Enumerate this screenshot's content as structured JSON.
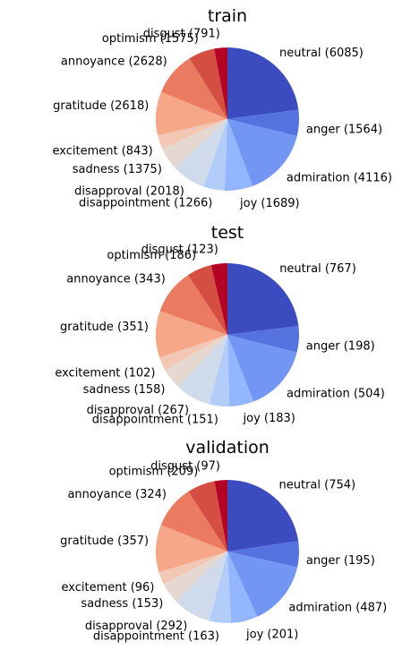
{
  "chart_data": [
    {
      "type": "pie",
      "title": "train",
      "start_angle_deg": 90,
      "direction": "clockwise",
      "slices": [
        {
          "label": "neutral (6085)",
          "category": "neutral",
          "value": 6085,
          "color": "#3b4cc0"
        },
        {
          "label": "anger (1564)",
          "category": "anger",
          "value": 1564,
          "color": "#5572df"
        },
        {
          "label": "admiration (4116)",
          "category": "admiration",
          "value": 4116,
          "color": "#7396f5"
        },
        {
          "label": "joy (1689)",
          "category": "joy",
          "value": 1689,
          "color": "#94b6ff"
        },
        {
          "label": "disappointment (1266)",
          "category": "disappointment",
          "value": 1266,
          "color": "#b3cdfb"
        },
        {
          "label": "disapproval (2018)",
          "category": "disapproval",
          "value": 2018,
          "color": "#cfdaea"
        },
        {
          "label": "sadness (1375)",
          "category": "sadness",
          "value": 1375,
          "color": "#e5d8d1"
        },
        {
          "label": "excitement (843)",
          "category": "excitement",
          "value": 843,
          "color": "#f2c8b4"
        },
        {
          "label": "gratitude (2618)",
          "category": "gratitude",
          "value": 2618,
          "color": "#f6a788"
        },
        {
          "label": "annoyance (2628)",
          "category": "annoyance",
          "value": 2628,
          "color": "#ea7b60"
        },
        {
          "label": "optimism (1575)",
          "category": "optimism",
          "value": 1575,
          "color": "#d44e41"
        },
        {
          "label": "disgust (791)",
          "category": "disgust",
          "value": 791,
          "color": "#b40426"
        }
      ]
    },
    {
      "type": "pie",
      "title": "test",
      "start_angle_deg": 90,
      "direction": "clockwise",
      "slices": [
        {
          "label": "neutral (767)",
          "category": "neutral",
          "value": 767,
          "color": "#3b4cc0"
        },
        {
          "label": "anger (198)",
          "category": "anger",
          "value": 198,
          "color": "#5572df"
        },
        {
          "label": "admiration (504)",
          "category": "admiration",
          "value": 504,
          "color": "#7396f5"
        },
        {
          "label": "joy (183)",
          "category": "joy",
          "value": 183,
          "color": "#94b6ff"
        },
        {
          "label": "disappointment (151)",
          "category": "disappointment",
          "value": 151,
          "color": "#b3cdfb"
        },
        {
          "label": "disapproval (267)",
          "category": "disapproval",
          "value": 267,
          "color": "#cfdaea"
        },
        {
          "label": "sadness (158)",
          "category": "sadness",
          "value": 158,
          "color": "#e5d8d1"
        },
        {
          "label": "excitement (102)",
          "category": "excitement",
          "value": 102,
          "color": "#f2c8b4"
        },
        {
          "label": "gratitude (351)",
          "category": "gratitude",
          "value": 351,
          "color": "#f6a788"
        },
        {
          "label": "annoyance (343)",
          "category": "annoyance",
          "value": 343,
          "color": "#ea7b60"
        },
        {
          "label": "optimism (186)",
          "category": "optimism",
          "value": 186,
          "color": "#d44e41"
        },
        {
          "label": "disgust (123)",
          "category": "disgust",
          "value": 123,
          "color": "#b40426"
        }
      ]
    },
    {
      "type": "pie",
      "title": "validation",
      "start_angle_deg": 90,
      "direction": "clockwise",
      "slices": [
        {
          "label": "neutral (754)",
          "category": "neutral",
          "value": 754,
          "color": "#3b4cc0"
        },
        {
          "label": "anger (195)",
          "category": "anger",
          "value": 195,
          "color": "#5572df"
        },
        {
          "label": "admiration (487)",
          "category": "admiration",
          "value": 487,
          "color": "#7396f5"
        },
        {
          "label": "joy (201)",
          "category": "joy",
          "value": 201,
          "color": "#94b6ff"
        },
        {
          "label": "disappointment (163)",
          "category": "disappointment",
          "value": 163,
          "color": "#b3cdfb"
        },
        {
          "label": "disapproval (292)",
          "category": "disapproval",
          "value": 292,
          "color": "#cfdaea"
        },
        {
          "label": "sadness (153)",
          "category": "sadness",
          "value": 153,
          "color": "#e5d8d1"
        },
        {
          "label": "excitement (96)",
          "category": "excitement",
          "value": 96,
          "color": "#f2c8b4"
        },
        {
          "label": "gratitude (357)",
          "category": "gratitude",
          "value": 357,
          "color": "#f6a788"
        },
        {
          "label": "annoyance (324)",
          "category": "annoyance",
          "value": 324,
          "color": "#ea7b60"
        },
        {
          "label": "optimism (209)",
          "category": "optimism",
          "value": 209,
          "color": "#d44e41"
        },
        {
          "label": "disgust (97)",
          "category": "disgust",
          "value": 97,
          "color": "#b40426"
        }
      ]
    }
  ]
}
